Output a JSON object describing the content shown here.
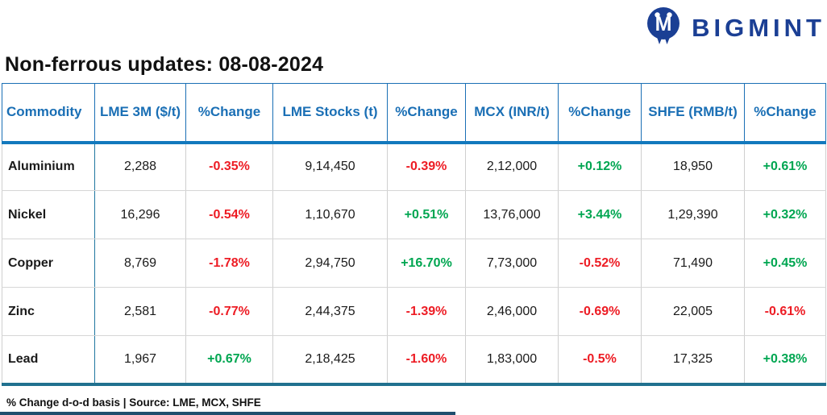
{
  "brand": {
    "name": "BIGMINT"
  },
  "chart_data": {
    "type": "table",
    "title": "Non-ferrous updates: 08-08-2024",
    "columns": [
      "Commodity",
      "LME 3M ($/t)",
      "%Change",
      "LME Stocks (t)",
      "%Change",
      "MCX (INR/t)",
      "%Change",
      "SHFE (RMB/t)",
      "%Change"
    ],
    "rows": [
      {
        "commodity": "Aluminium",
        "values": [
          "2,288",
          "-0.35%",
          "9,14,450",
          "-0.39%",
          "2,12,000",
          "+0.12%",
          "18,950",
          "+0.61%"
        ]
      },
      {
        "commodity": "Nickel",
        "values": [
          "16,296",
          "-0.54%",
          "1,10,670",
          "+0.51%",
          "13,76,000",
          "+3.44%",
          "1,29,390",
          "+0.32%"
        ]
      },
      {
        "commodity": "Copper",
        "values": [
          "8,769",
          "-1.78%",
          "2,94,750",
          "+16.70%",
          "7,73,000",
          "-0.52%",
          "71,490",
          "+0.45%"
        ]
      },
      {
        "commodity": "Zinc",
        "values": [
          "2,581",
          "-0.77%",
          "2,44,375",
          "-1.39%",
          "2,46,000",
          "-0.69%",
          "22,005",
          "-0.61%"
        ]
      },
      {
        "commodity": "Lead",
        "values": [
          "1,967",
          "+0.67%",
          "2,18,425",
          "-1.60%",
          "1,83,000",
          "-0.5%",
          "17,325",
          "+0.38%"
        ]
      }
    ],
    "footer": "% Change d-o-d basis | Source: LME, MCX, SHFE"
  },
  "colors": {
    "header_text": "#1a6fb5",
    "header_rule": "#1279bd",
    "bottom_rule": "#20718f",
    "commodity_divider": "#2077a0",
    "grid_gray": "#cfcfcf",
    "negative": "#ed1c24",
    "positive": "#00a651",
    "brand_navy": "#1b3f94",
    "bottom_bar": "#1f4e6e"
  }
}
